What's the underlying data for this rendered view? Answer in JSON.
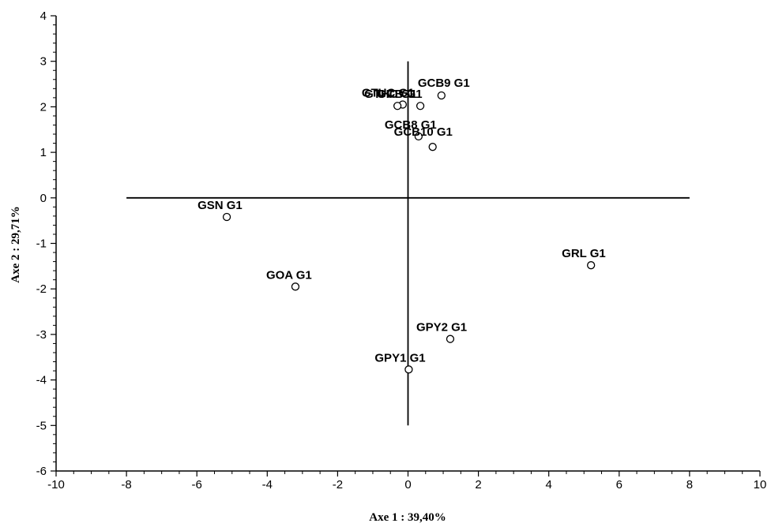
{
  "chart_data": {
    "type": "scatter",
    "title": "",
    "xlabel": "Axe 1 : 39,40%",
    "ylabel": "Axe 2 : 29,71%",
    "xlim": [
      -10,
      10
    ],
    "ylim": [
      -6,
      4
    ],
    "xticks": [
      -10,
      -8,
      -6,
      -4,
      -2,
      0,
      2,
      4,
      6,
      8,
      10
    ],
    "yticks": [
      -6,
      -5,
      -4,
      -3,
      -2,
      -1,
      0,
      1,
      2,
      3,
      4
    ],
    "grid": false,
    "reference_lines": {
      "horizontal": {
        "y": 0,
        "x_from": -8,
        "x_to": 8
      },
      "vertical": {
        "x": 0,
        "y_from": -5,
        "y_to": 3
      }
    },
    "points": [
      {
        "label": "GCB9 G1",
        "x": 0.95,
        "y": 2.25
      },
      {
        "label": "GCB G1",
        "x": 0.35,
        "y": 2.02
      },
      {
        "label": "GTUC G1",
        "x": -0.15,
        "y": 2.05
      },
      {
        "label": "GTHC G1",
        "x": -0.3,
        "y": 2.02
      },
      {
        "label": "GCB8 G1",
        "x": 0.3,
        "y": 1.35
      },
      {
        "label": "GCB10 G1",
        "x": 0.7,
        "y": 1.12
      },
      {
        "label": "GSN G1",
        "x": -5.15,
        "y": -0.42
      },
      {
        "label": "GOA G1",
        "x": -3.2,
        "y": -1.95
      },
      {
        "label": "GRL G1",
        "x": 5.2,
        "y": -1.48
      },
      {
        "label": "GPY2 G1",
        "x": 1.2,
        "y": -3.1
      },
      {
        "label": "GPY1 G1",
        "x": 0.02,
        "y": -3.77
      }
    ]
  }
}
